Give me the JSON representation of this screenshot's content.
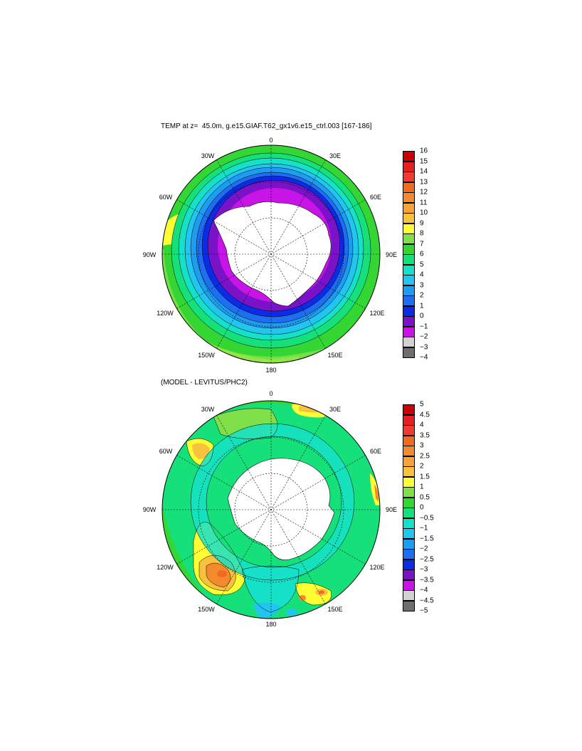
{
  "panels": [
    {
      "id": "temp",
      "title": "TEMP at z=  45.0m, g.e15.GIAF.T62_gx1v6.e15_ctrl.003 [167-186]",
      "lon_labels": {
        "n0": "0",
        "w30": "30W",
        "e30": "30E",
        "w60": "60W",
        "e60": "60E",
        "w90": "90W",
        "e90": "90E",
        "w120": "120W",
        "e120": "120E",
        "w150": "150W",
        "e150": "150E",
        "s180": "180"
      },
      "colorbar": {
        "labels": [
          "16",
          "15",
          "14",
          "13",
          "12",
          "11",
          "10",
          "9",
          "8",
          "7",
          "6",
          "5",
          "4",
          "3",
          "2",
          "1",
          "0",
          "−1",
          "−2",
          "−3",
          "−4"
        ],
        "colors": [
          "#cc0000",
          "#e5201e",
          "#f03b32",
          "#f26a1f",
          "#f48a2e",
          "#f7a33c",
          "#f9c23e",
          "#ffff33",
          "#7fe04a",
          "#33d633",
          "#15e07a",
          "#15e0c8",
          "#22c4f0",
          "#1e9cf0",
          "#1e6ef0",
          "#0a2ce6",
          "#7a12c8",
          "#c814e6",
          "#d2d2d2",
          "#6e6e6e"
        ]
      }
    },
    {
      "id": "diff",
      "title": "(MODEL - LEVITUS/PHC2)",
      "lon_labels": {
        "n0": "0",
        "w30": "30W",
        "e30": "30E",
        "w60": "60W",
        "e60": "60E",
        "w90": "90W",
        "e90": "90E",
        "w120": "120W",
        "e120": "120E",
        "w150": "150W",
        "e150": "150E",
        "s180": "180"
      },
      "colorbar": {
        "labels": [
          "5",
          "4.5",
          "4",
          "3.5",
          "3",
          "2.5",
          "2",
          "1.5",
          "1",
          "0.5",
          "0",
          "−0.5",
          "−1",
          "−1.5",
          "−2",
          "−2.5",
          "−3",
          "−3.5",
          "−4",
          "−4.5",
          "−5"
        ],
        "colors": [
          "#cc0000",
          "#e5201e",
          "#f03b32",
          "#f26a1f",
          "#f48a2e",
          "#f7a33c",
          "#f9c23e",
          "#ffff33",
          "#7fe04a",
          "#33d633",
          "#15e07a",
          "#15e0c8",
          "#22c4f0",
          "#1e9cf0",
          "#1e6ef0",
          "#0a2ce6",
          "#7a12c8",
          "#c814e6",
          "#d2d2d2",
          "#6e6e6e"
        ]
      }
    }
  ]
}
